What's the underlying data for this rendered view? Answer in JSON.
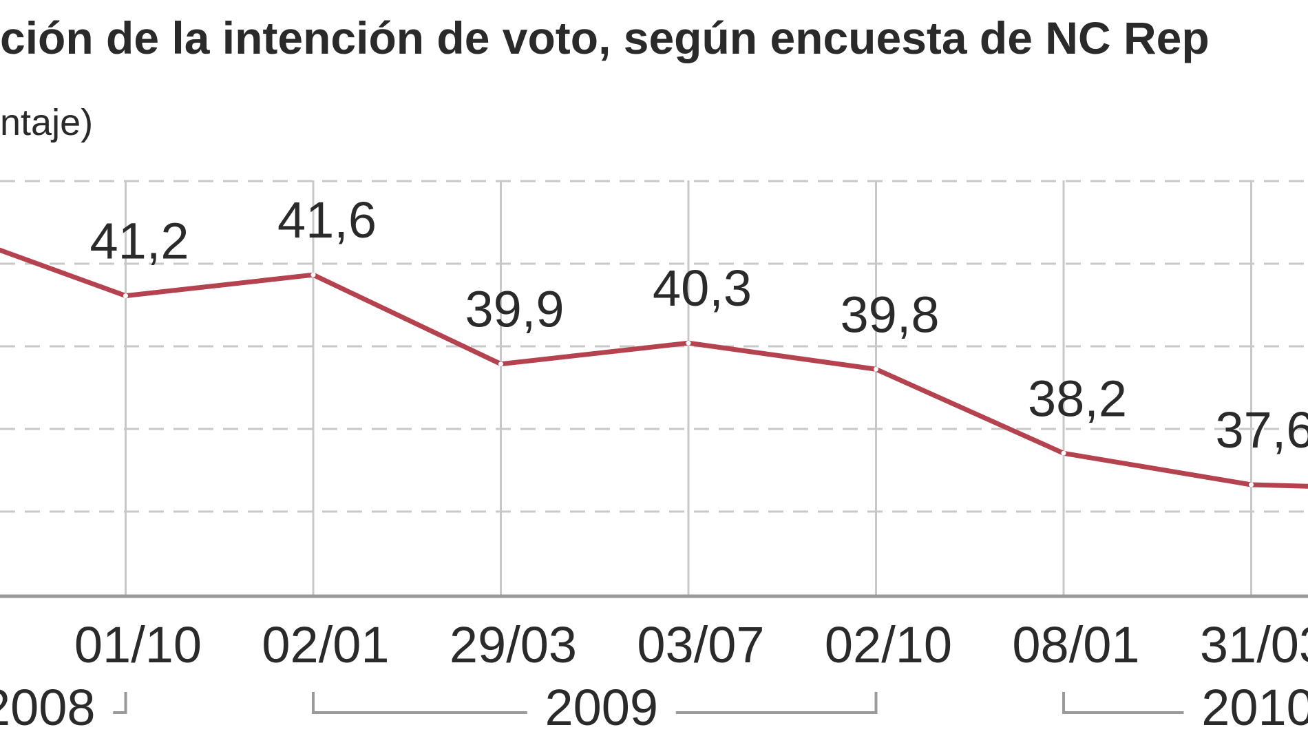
{
  "chart_data": {
    "type": "line",
    "title": "ción de la intención de voto, según encuesta de NC Rep",
    "unit_label": "ntaje)",
    "colors": {
      "line": "#b5424f",
      "grid": "#c8c8c8",
      "axis": "#9a9a9a",
      "text": "#2a2a2a"
    },
    "grid": true,
    "categories": [
      "",
      "01/10",
      "02/01",
      "29/03",
      "03/07",
      "02/10",
      "08/01",
      "31/03",
      ""
    ],
    "values": [
      42.5,
      41.2,
      41.6,
      39.9,
      40.3,
      39.8,
      38.2,
      37.6,
      37.5
    ],
    "data_labels": [
      "",
      "41,2",
      "41,6",
      "39,9",
      "40,3",
      "39,8",
      "38,2",
      "37,6",
      ""
    ],
    "ylim": [
      35.5,
      43.4
    ],
    "years": [
      {
        "label": "2008",
        "first": 0,
        "last": 1
      },
      {
        "label": "2009",
        "first": 2,
        "last": 5
      },
      {
        "label": "2010",
        "first": 6,
        "last": 8
      }
    ]
  }
}
